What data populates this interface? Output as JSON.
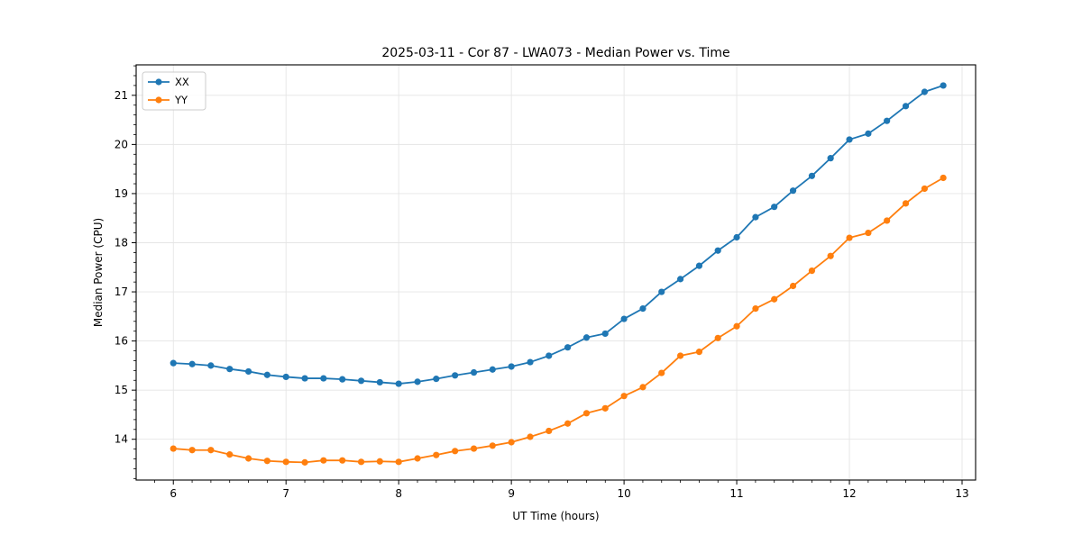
{
  "figure": {
    "background": "#ffffff",
    "plot_border_color": "#000000",
    "grid_color": "#e5e5e5"
  },
  "chart_data": {
    "type": "line",
    "title": "2025-03-11 - Cor 87 - LWA073 - Median Power vs. Time",
    "xlabel": "UT Time (hours)",
    "ylabel": "Median Power (CPU)",
    "xlim": [
      5.67,
      13.12
    ],
    "ylim": [
      13.17,
      21.62
    ],
    "x_ticks": [
      6,
      7,
      8,
      9,
      10,
      11,
      12,
      13
    ],
    "y_ticks": [
      14,
      15,
      16,
      17,
      18,
      19,
      20,
      21
    ],
    "x_minor_step": 0.1666667,
    "y_minor_step": 0.2,
    "grid": true,
    "legend_position": "upper left",
    "marker": "circle",
    "x": [
      6.0,
      6.167,
      6.333,
      6.5,
      6.667,
      6.833,
      7.0,
      7.167,
      7.333,
      7.5,
      7.667,
      7.833,
      8.0,
      8.167,
      8.333,
      8.5,
      8.667,
      8.833,
      9.0,
      9.167,
      9.333,
      9.5,
      9.667,
      9.833,
      10.0,
      10.167,
      10.333,
      10.5,
      10.667,
      10.833,
      11.0,
      11.167,
      11.333,
      11.5,
      11.667,
      11.833,
      12.0,
      12.167,
      12.333,
      12.5,
      12.667,
      12.833
    ],
    "series": [
      {
        "name": "XX",
        "color": "#1f77b4",
        "values": [
          15.55,
          15.53,
          15.5,
          15.43,
          15.38,
          15.31,
          15.27,
          15.24,
          15.24,
          15.22,
          15.19,
          15.16,
          15.13,
          15.17,
          15.23,
          15.3,
          15.36,
          15.42,
          15.48,
          15.57,
          15.7,
          15.87,
          16.07,
          16.15,
          16.45,
          16.66,
          17.0,
          17.26,
          17.53,
          17.84,
          18.11,
          18.52,
          18.73,
          19.06,
          19.36,
          19.72,
          20.1,
          20.22,
          20.48,
          20.78,
          21.07,
          21.2
        ]
      },
      {
        "name": "YY",
        "color": "#ff7f0e",
        "values": [
          13.81,
          13.78,
          13.78,
          13.69,
          13.61,
          13.56,
          13.54,
          13.53,
          13.57,
          13.57,
          13.54,
          13.55,
          13.54,
          13.61,
          13.68,
          13.76,
          13.81,
          13.87,
          13.94,
          14.05,
          14.17,
          14.32,
          14.53,
          14.63,
          14.88,
          15.06,
          15.35,
          15.7,
          15.78,
          16.06,
          16.3,
          16.66,
          16.85,
          17.12,
          17.43,
          17.73,
          18.1,
          18.2,
          18.45,
          18.8,
          19.1,
          19.32
        ]
      }
    ]
  }
}
